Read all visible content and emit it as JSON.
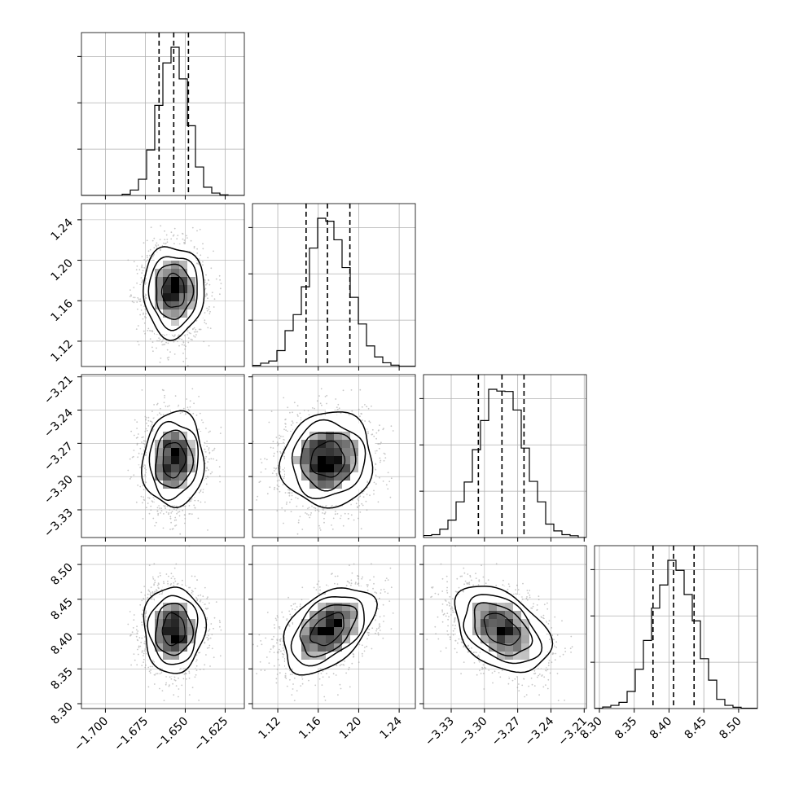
{
  "chart_data": {
    "type": "corner",
    "parameters": [
      {
        "range": [
          -1.715,
          -1.613
        ],
        "ticks": [
          -1.7,
          -1.675,
          -1.65,
          -1.625
        ],
        "tick_labels": [
          "−1.700",
          "−1.675",
          "−1.650",
          "−1.625"
        ],
        "quantiles": [
          -1.6664,
          -1.6572,
          -1.648
        ],
        "mean": -1.6573,
        "sd": 0.0091,
        "hist_peak_counts": 3
      },
      {
        "range": [
          1.095,
          1.256
        ],
        "ticks": [
          1.12,
          1.16,
          1.2,
          1.24
        ],
        "tick_labels": [
          "1.12",
          "1.16",
          "1.20",
          "1.24"
        ],
        "quantiles": [
          1.148,
          1.1691,
          1.1913
        ],
        "mean": 1.1695,
        "sd": 0.0215,
        "hist_peak_counts": 3
      },
      {
        "range": [
          -3.355,
          -3.208
        ],
        "ticks": [
          -3.33,
          -3.3,
          -3.27,
          -3.24,
          -3.21
        ],
        "tick_labels": [
          "−3.33",
          "−3.30",
          "−3.27",
          "−3.24",
          "−3.21"
        ],
        "quantiles": [
          -3.3055,
          -3.2842,
          -3.2643
        ],
        "mean": -3.2848,
        "sd": 0.0205,
        "hist_peak_counts": 3
      },
      {
        "range": [
          8.293,
          8.527
        ],
        "ticks": [
          8.3,
          8.35,
          8.4,
          8.45,
          8.5
        ],
        "tick_labels": [
          "8.30",
          "8.35",
          "8.40",
          "8.45",
          "8.50"
        ],
        "quantiles": [
          8.377,
          8.4065,
          8.436
        ],
        "mean": 8.4065,
        "sd": 0.0295,
        "hist_peak_counts": 3
      }
    ],
    "correlations": [
      [
        1.0,
        0.0,
        0.05,
        0.0
      ],
      [
        0.0,
        1.0,
        0.05,
        0.45
      ],
      [
        0.05,
        0.05,
        1.0,
        -0.4
      ],
      [
        0.0,
        0.45,
        -0.4,
        1.0
      ]
    ],
    "hist_bins": 20,
    "contour_levels_sigma": [
      0.5,
      1.0,
      1.5,
      2.0
    ],
    "grid": true,
    "colors": {
      "line": "#000000",
      "grid": "#b0b0b0",
      "points": "#9a9a9a",
      "density_low": "#ffffff",
      "density_high": "#000000"
    }
  }
}
